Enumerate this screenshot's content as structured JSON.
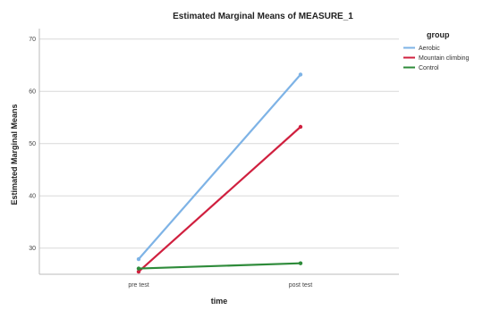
{
  "chart_data": {
    "type": "line",
    "title": "Estimated Marginal Means of MEASURE_1",
    "xlabel": "time",
    "ylabel": "Estimated Marginal Means",
    "categories": [
      "pre test",
      "post test"
    ],
    "ylim": [
      25,
      72
    ],
    "yticks": [
      30,
      40,
      50,
      60,
      70
    ],
    "grid": "horizontal",
    "legend": {
      "title": "group",
      "placement": "top-right"
    },
    "series": [
      {
        "name": "Aerobic",
        "color": "#7eb3e6",
        "values": [
          27.9,
          63.2
        ]
      },
      {
        "name": "Mountain climbing",
        "color": "#d0203f",
        "values": [
          25.5,
          53.2
        ]
      },
      {
        "name": "Control",
        "color": "#2e8b3a",
        "values": [
          26.1,
          27.1
        ]
      }
    ]
  }
}
